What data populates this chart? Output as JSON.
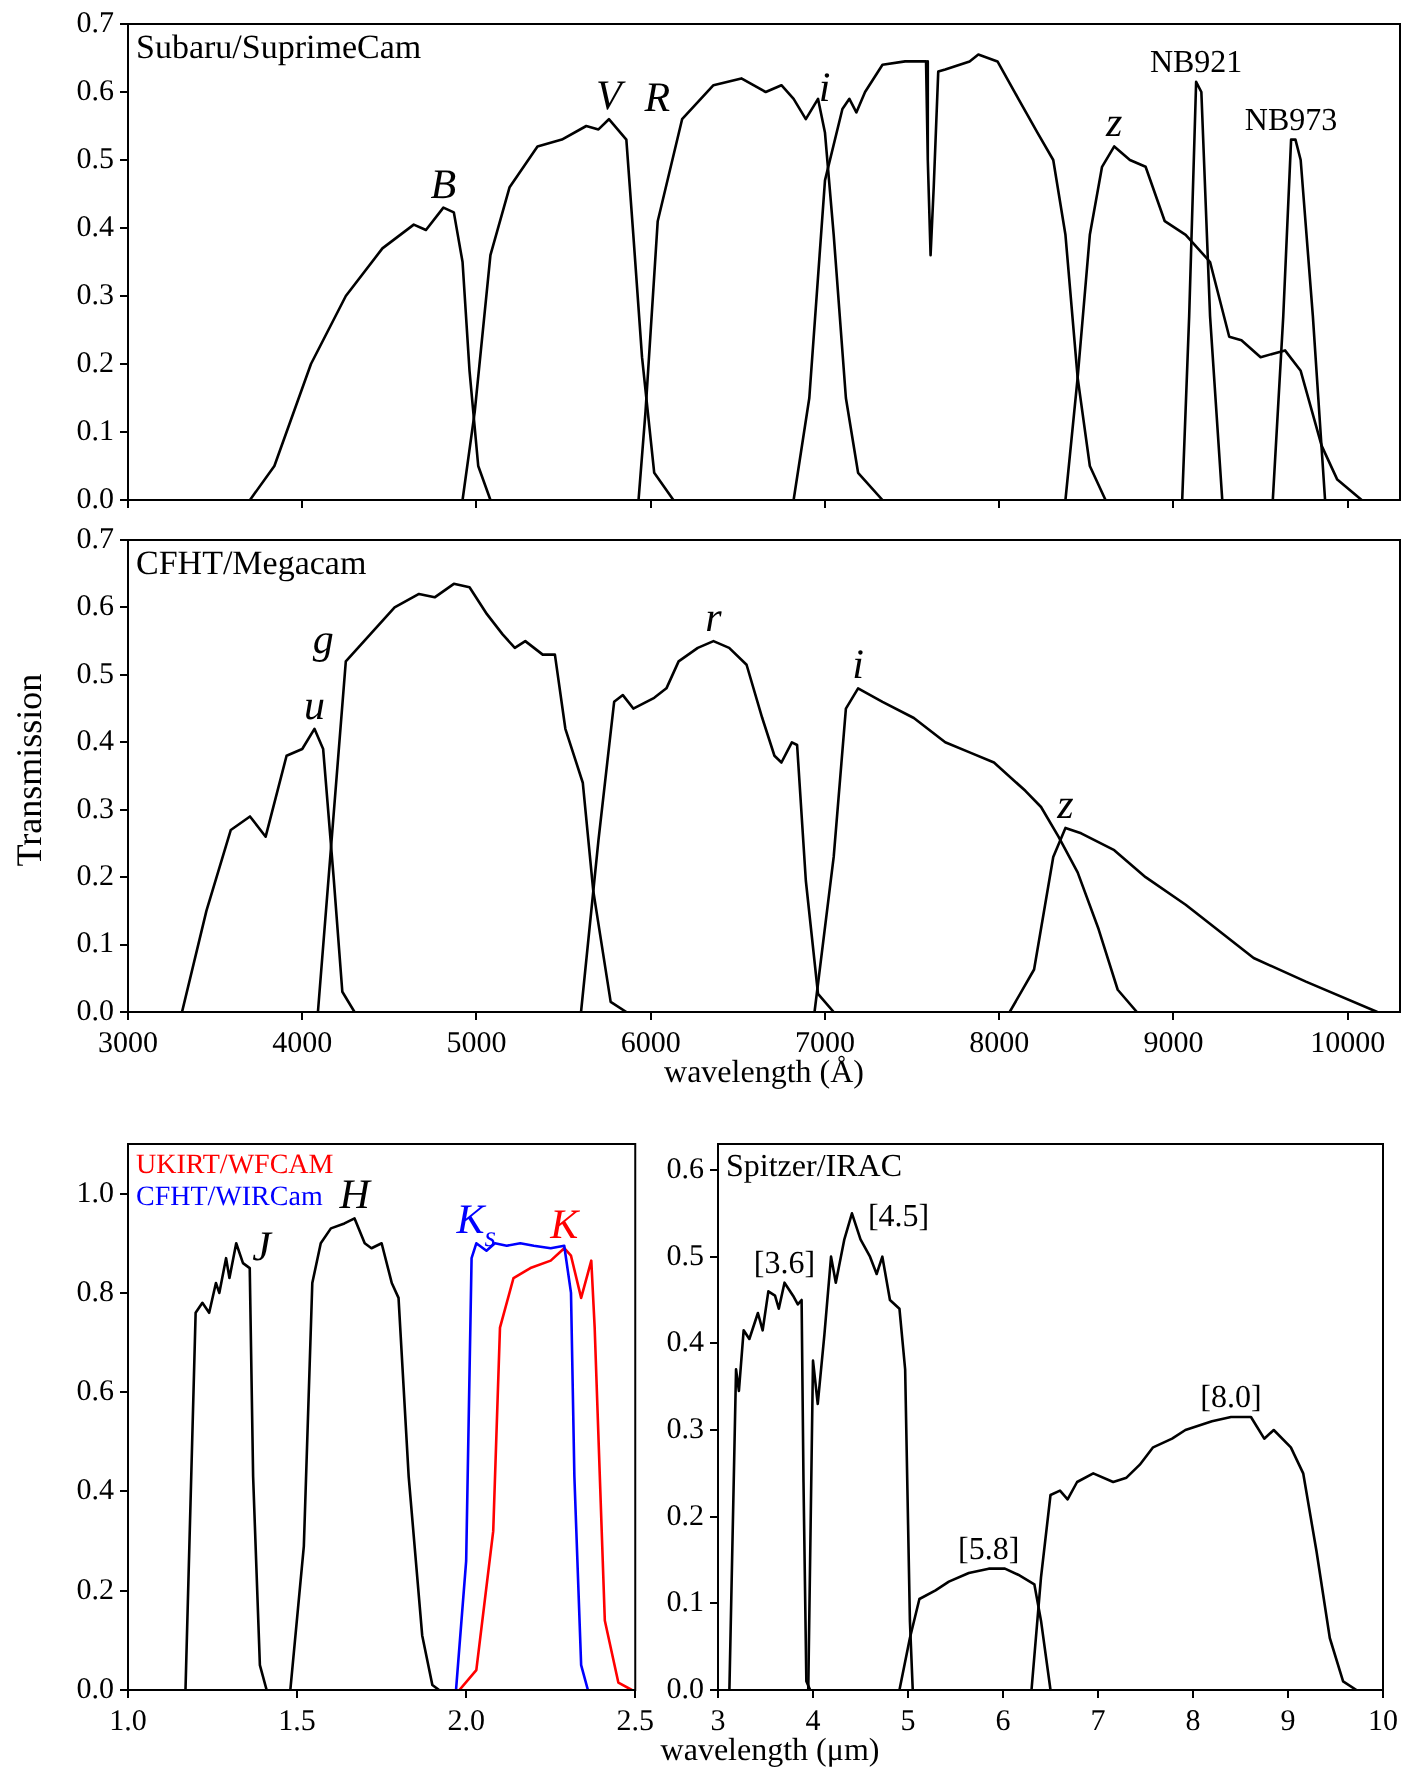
{
  "chart_data": [
    {
      "type": "line",
      "title": "Subaru/SuprimeCam",
      "xlim": [
        3000,
        10300
      ],
      "xticks": [
        3000,
        4000,
        5000,
        6000,
        7000,
        8000,
        9000,
        10000
      ],
      "ylim": [
        0,
        0.7
      ],
      "yticks": [
        {
          "value": 0,
          "label": "0.0"
        },
        {
          "value": 0.1,
          "label": "0.1"
        },
        {
          "value": 0.2,
          "label": "0.2"
        },
        {
          "value": 0.3,
          "label": "0.3"
        },
        {
          "value": 0.4,
          "label": "0.4"
        },
        {
          "value": 0.5,
          "label": "0.5"
        },
        {
          "value": 0.6,
          "label": "0.6"
        },
        {
          "value": 0.7,
          "label": "0.7"
        }
      ],
      "tick_labels": "y",
      "series": [
        {
          "name": "B",
          "color": "#000000",
          "x": [
            3700,
            3840,
            4050,
            4250,
            4460,
            4640,
            4710,
            4810,
            4870,
            4920,
            4960,
            5010,
            5080
          ],
          "values": [
            0,
            0.05,
            0.2,
            0.3,
            0.37,
            0.405,
            0.397,
            0.43,
            0.423,
            0.35,
            0.19,
            0.05,
            0
          ]
        },
        {
          "name": "V",
          "color": "#000000",
          "x": [
            4920,
            4990,
            5080,
            5190,
            5350,
            5490,
            5630,
            5700,
            5760,
            5860,
            5900,
            5950,
            6020,
            6130
          ],
          "values": [
            0,
            0.13,
            0.36,
            0.46,
            0.52,
            0.53,
            0.55,
            0.545,
            0.56,
            0.53,
            0.39,
            0.21,
            0.04,
            0
          ]
        },
        {
          "name": "R",
          "color": "#000000",
          "x": [
            5930,
            5970,
            6040,
            6180,
            6360,
            6520,
            6660,
            6750,
            6820,
            6890,
            6960,
            7000,
            7050,
            7120,
            7190,
            7330
          ],
          "values": [
            0,
            0.13,
            0.41,
            0.56,
            0.61,
            0.62,
            0.6,
            0.61,
            0.59,
            0.56,
            0.59,
            0.54,
            0.39,
            0.15,
            0.04,
            0
          ]
        },
        {
          "name": "i",
          "color": "#000000",
          "x": [
            6820,
            6910,
            7000,
            7100,
            7140,
            7180,
            7230,
            7330,
            7460,
            7580,
            7590,
            7606,
            7624,
            7650,
            7690,
            7830,
            7880,
            7990,
            8110,
            8220,
            8310,
            8380,
            8450,
            8520,
            8610
          ],
          "values": [
            0,
            0.15,
            0.47,
            0.575,
            0.59,
            0.57,
            0.6,
            0.64,
            0.645,
            0.645,
            0.5,
            0.36,
            0.46,
            0.63,
            0.633,
            0.645,
            0.655,
            0.645,
            0.59,
            0.54,
            0.5,
            0.39,
            0.18,
            0.05,
            0
          ]
        },
        {
          "name": "z",
          "color": "#000000",
          "x": [
            8380,
            8450,
            8520,
            8590,
            8660,
            8750,
            8840,
            8950,
            9070,
            9210,
            9320,
            9390,
            9500,
            9640,
            9730,
            9850,
            9940,
            10080
          ],
          "values": [
            0,
            0.18,
            0.39,
            0.49,
            0.52,
            0.5,
            0.49,
            0.41,
            0.39,
            0.35,
            0.24,
            0.235,
            0.21,
            0.22,
            0.19,
            0.08,
            0.03,
            0
          ]
        },
        {
          "name": "NB921",
          "color": "#000000",
          "x": [
            9050,
            9090,
            9130,
            9160,
            9210,
            9280
          ],
          "values": [
            0,
            0.27,
            0.615,
            0.6,
            0.27,
            0
          ]
        },
        {
          "name": "NB973",
          "color": "#000000",
          "x": [
            9570,
            9630,
            9675,
            9700,
            9730,
            9800,
            9870
          ],
          "values": [
            0,
            0.27,
            0.53,
            0.53,
            0.5,
            0.27,
            0
          ]
        }
      ]
    },
    {
      "type": "line",
      "title": "CFHT/Megacam",
      "xlabel": "wavelength (Å)",
      "ylabel": "Transmission",
      "xlim": [
        3000,
        10300
      ],
      "xticks": [
        3000,
        4000,
        5000,
        6000,
        7000,
        8000,
        9000,
        10000
      ],
      "ylim": [
        0,
        0.7
      ],
      "yticks": [
        {
          "value": 0,
          "label": "0.0"
        },
        {
          "value": 0.1,
          "label": "0.1"
        },
        {
          "value": 0.2,
          "label": "0.2"
        },
        {
          "value": 0.3,
          "label": "0.3"
        },
        {
          "value": 0.4,
          "label": "0.4"
        },
        {
          "value": 0.5,
          "label": "0.5"
        },
        {
          "value": 0.6,
          "label": "0.6"
        },
        {
          "value": 0.7,
          "label": "0.7"
        }
      ],
      "series": [
        {
          "name": "u",
          "color": "#000000",
          "x": [
            3310,
            3450,
            3590,
            3700,
            3790,
            3910,
            4000,
            4070,
            4120,
            4180,
            4230,
            4300
          ],
          "values": [
            0,
            0.15,
            0.27,
            0.29,
            0.26,
            0.38,
            0.39,
            0.42,
            0.39,
            0.2,
            0.03,
            0
          ]
        },
        {
          "name": "g",
          "color": "#000000",
          "x": [
            4090,
            4250,
            4390,
            4530,
            4670,
            4760,
            4870,
            4960,
            5060,
            5150,
            5220,
            5280,
            5380,
            5450,
            5510,
            5610,
            5670,
            5770,
            5860
          ],
          "values": [
            0,
            0.52,
            0.56,
            0.6,
            0.62,
            0.615,
            0.635,
            0.63,
            0.59,
            0.56,
            0.54,
            0.55,
            0.53,
            0.53,
            0.42,
            0.34,
            0.18,
            0.015,
            0
          ]
        },
        {
          "name": "r",
          "color": "#000000",
          "x": [
            5600,
            5700,
            5790,
            5840,
            5900,
            6020,
            6090,
            6160,
            6270,
            6360,
            6450,
            6550,
            6640,
            6710,
            6750,
            6810,
            6840,
            6890,
            6960,
            7050
          ],
          "values": [
            0,
            0.255,
            0.46,
            0.47,
            0.45,
            0.466,
            0.48,
            0.52,
            0.54,
            0.55,
            0.54,
            0.515,
            0.436,
            0.38,
            0.37,
            0.4,
            0.396,
            0.195,
            0.027,
            0
          ]
        },
        {
          "name": "i",
          "color": "#000000",
          "x": [
            6940,
            7050,
            7120,
            7190,
            7330,
            7510,
            7690,
            7830,
            7970,
            8150,
            8240,
            8340,
            8450,
            8570,
            8680,
            8790
          ],
          "values": [
            0,
            0.23,
            0.45,
            0.48,
            0.46,
            0.436,
            0.4,
            0.385,
            0.37,
            0.328,
            0.304,
            0.26,
            0.207,
            0.123,
            0.033,
            0
          ]
        },
        {
          "name": "z",
          "color": "#000000",
          "x": [
            8060,
            8200,
            8310,
            8380,
            8470,
            8660,
            8840,
            9070,
            9460,
            9760,
            10170
          ],
          "values": [
            0,
            0.063,
            0.23,
            0.273,
            0.265,
            0.24,
            0.2,
            0.159,
            0.08,
            0.045,
            0
          ]
        }
      ]
    },
    {
      "type": "line",
      "title": "UKIRT/WFCAM",
      "subtitle": "CFHT/WIRCam",
      "xlim": [
        1,
        2.5
      ],
      "xticks": [
        {
          "value": 1,
          "label": "1.0"
        },
        {
          "value": 1.5,
          "label": "1.5"
        },
        {
          "value": 2,
          "label": "2.0"
        },
        {
          "value": 2.5,
          "label": "2.5"
        }
      ],
      "ylim": [
        0,
        1.1
      ],
      "yticks": [
        {
          "value": 0,
          "label": "0.0"
        },
        {
          "value": 0.2,
          "label": "0.2"
        },
        {
          "value": 0.4,
          "label": "0.4"
        },
        {
          "value": 0.6,
          "label": "0.6"
        },
        {
          "value": 0.8,
          "label": "0.8"
        },
        {
          "value": 1,
          "label": "1.0"
        }
      ],
      "series": [
        {
          "name": "J",
          "color": "#000000",
          "x": [
            1.17,
            1.2,
            1.22,
            1.24,
            1.26,
            1.27,
            1.29,
            1.3,
            1.32,
            1.34,
            1.36,
            1.37,
            1.39,
            1.41
          ],
          "values": [
            0,
            0.76,
            0.78,
            0.76,
            0.82,
            0.8,
            0.87,
            0.83,
            0.9,
            0.86,
            0.85,
            0.43,
            0.05,
            0
          ]
        },
        {
          "name": "H",
          "color": "#000000",
          "x": [
            1.48,
            1.52,
            1.545,
            1.57,
            1.6,
            1.64,
            1.67,
            1.7,
            1.72,
            1.75,
            1.78,
            1.8,
            1.83,
            1.87,
            1.9,
            1.92
          ],
          "values": [
            0,
            0.29,
            0.82,
            0.9,
            0.93,
            0.94,
            0.95,
            0.9,
            0.89,
            0.9,
            0.82,
            0.79,
            0.43,
            0.11,
            0.01,
            0
          ]
        },
        {
          "name": "K$_{s}$",
          "color": "#0000ff",
          "x": [
            1.97,
            2,
            2.016,
            2.03,
            2.06,
            2.085,
            2.12,
            2.16,
            2.2,
            2.25,
            2.29,
            2.31,
            2.32,
            2.34,
            2.36
          ],
          "values": [
            0,
            0.26,
            0.87,
            0.9,
            0.885,
            0.9,
            0.895,
            0.9,
            0.895,
            0.89,
            0.895,
            0.8,
            0.43,
            0.05,
            0
          ]
        },
        {
          "name": "K",
          "color": "#ff0000",
          "x": [
            1.98,
            2.03,
            2.08,
            2.1,
            2.14,
            2.19,
            2.25,
            2.29,
            2.31,
            2.34,
            2.36,
            2.37,
            2.38,
            2.41,
            2.45,
            2.49
          ],
          "values": [
            0,
            0.04,
            0.32,
            0.73,
            0.83,
            0.85,
            0.865,
            0.89,
            0.875,
            0.79,
            0.84,
            0.865,
            0.73,
            0.14,
            0.015,
            0
          ]
        }
      ]
    },
    {
      "type": "line",
      "title": "Spitzer/IRAC",
      "xlabel": "wavelength (μm)",
      "xlim": [
        3,
        10
      ],
      "xticks": [
        3,
        4,
        5,
        6,
        7,
        8,
        9,
        10
      ],
      "ylim": [
        0,
        0.63
      ],
      "yticks": [
        {
          "value": 0,
          "label": "0.0"
        },
        {
          "value": 0.1,
          "label": "0.1"
        },
        {
          "value": 0.2,
          "label": "0.2"
        },
        {
          "value": 0.3,
          "label": "0.3"
        },
        {
          "value": 0.4,
          "label": "0.4"
        },
        {
          "value": 0.5,
          "label": "0.5"
        },
        {
          "value": 0.6,
          "label": "0.6"
        }
      ],
      "series": [
        {
          "name": "[3.6]",
          "color": "#000000",
          "x": [
            3.12,
            3.19,
            3.22,
            3.27,
            3.33,
            3.42,
            3.47,
            3.53,
            3.6,
            3.64,
            3.7,
            3.79,
            3.84,
            3.88,
            3.9,
            3.93,
            3.97
          ],
          "values": [
            0,
            0.37,
            0.345,
            0.415,
            0.405,
            0.435,
            0.415,
            0.46,
            0.455,
            0.44,
            0.47,
            0.455,
            0.445,
            0.45,
            0.24,
            0.01,
            0
          ]
        },
        {
          "name": "[4.5]",
          "color": "#000000",
          "x": [
            3.95,
            4,
            4.05,
            4.12,
            4.19,
            4.24,
            4.33,
            4.41,
            4.5,
            4.6,
            4.67,
            4.73,
            4.81,
            4.91,
            4.97,
            5.02,
            5.05
          ],
          "values": [
            0,
            0.38,
            0.33,
            0.41,
            0.5,
            0.47,
            0.52,
            0.55,
            0.52,
            0.5,
            0.48,
            0.5,
            0.45,
            0.44,
            0.37,
            0.08,
            0
          ]
        },
        {
          "name": "[5.8]",
          "color": "#000000",
          "x": [
            4.91,
            5.02,
            5.12,
            5.29,
            5.43,
            5.64,
            5.85,
            6.02,
            6.16,
            6.33,
            6.4,
            6.5
          ],
          "values": [
            0,
            0.06,
            0.105,
            0.115,
            0.125,
            0.135,
            0.14,
            0.14,
            0.133,
            0.122,
            0.08,
            0
          ]
        },
        {
          "name": "[8.0]",
          "color": "#000000",
          "x": [
            6.3,
            6.4,
            6.5,
            6.6,
            6.68,
            6.78,
            6.95,
            7.16,
            7.3,
            7.44,
            7.58,
            7.78,
            7.92,
            8.2,
            8.4,
            8.61,
            8.75,
            8.85,
            9.03,
            9.16,
            9.3,
            9.44,
            9.58,
            9.72
          ],
          "values": [
            0,
            0.13,
            0.225,
            0.23,
            0.22,
            0.24,
            0.25,
            0.24,
            0.245,
            0.26,
            0.28,
            0.29,
            0.3,
            0.31,
            0.315,
            0.315,
            0.29,
            0.3,
            0.28,
            0.25,
            0.16,
            0.06,
            0.01,
            0
          ]
        }
      ]
    }
  ]
}
